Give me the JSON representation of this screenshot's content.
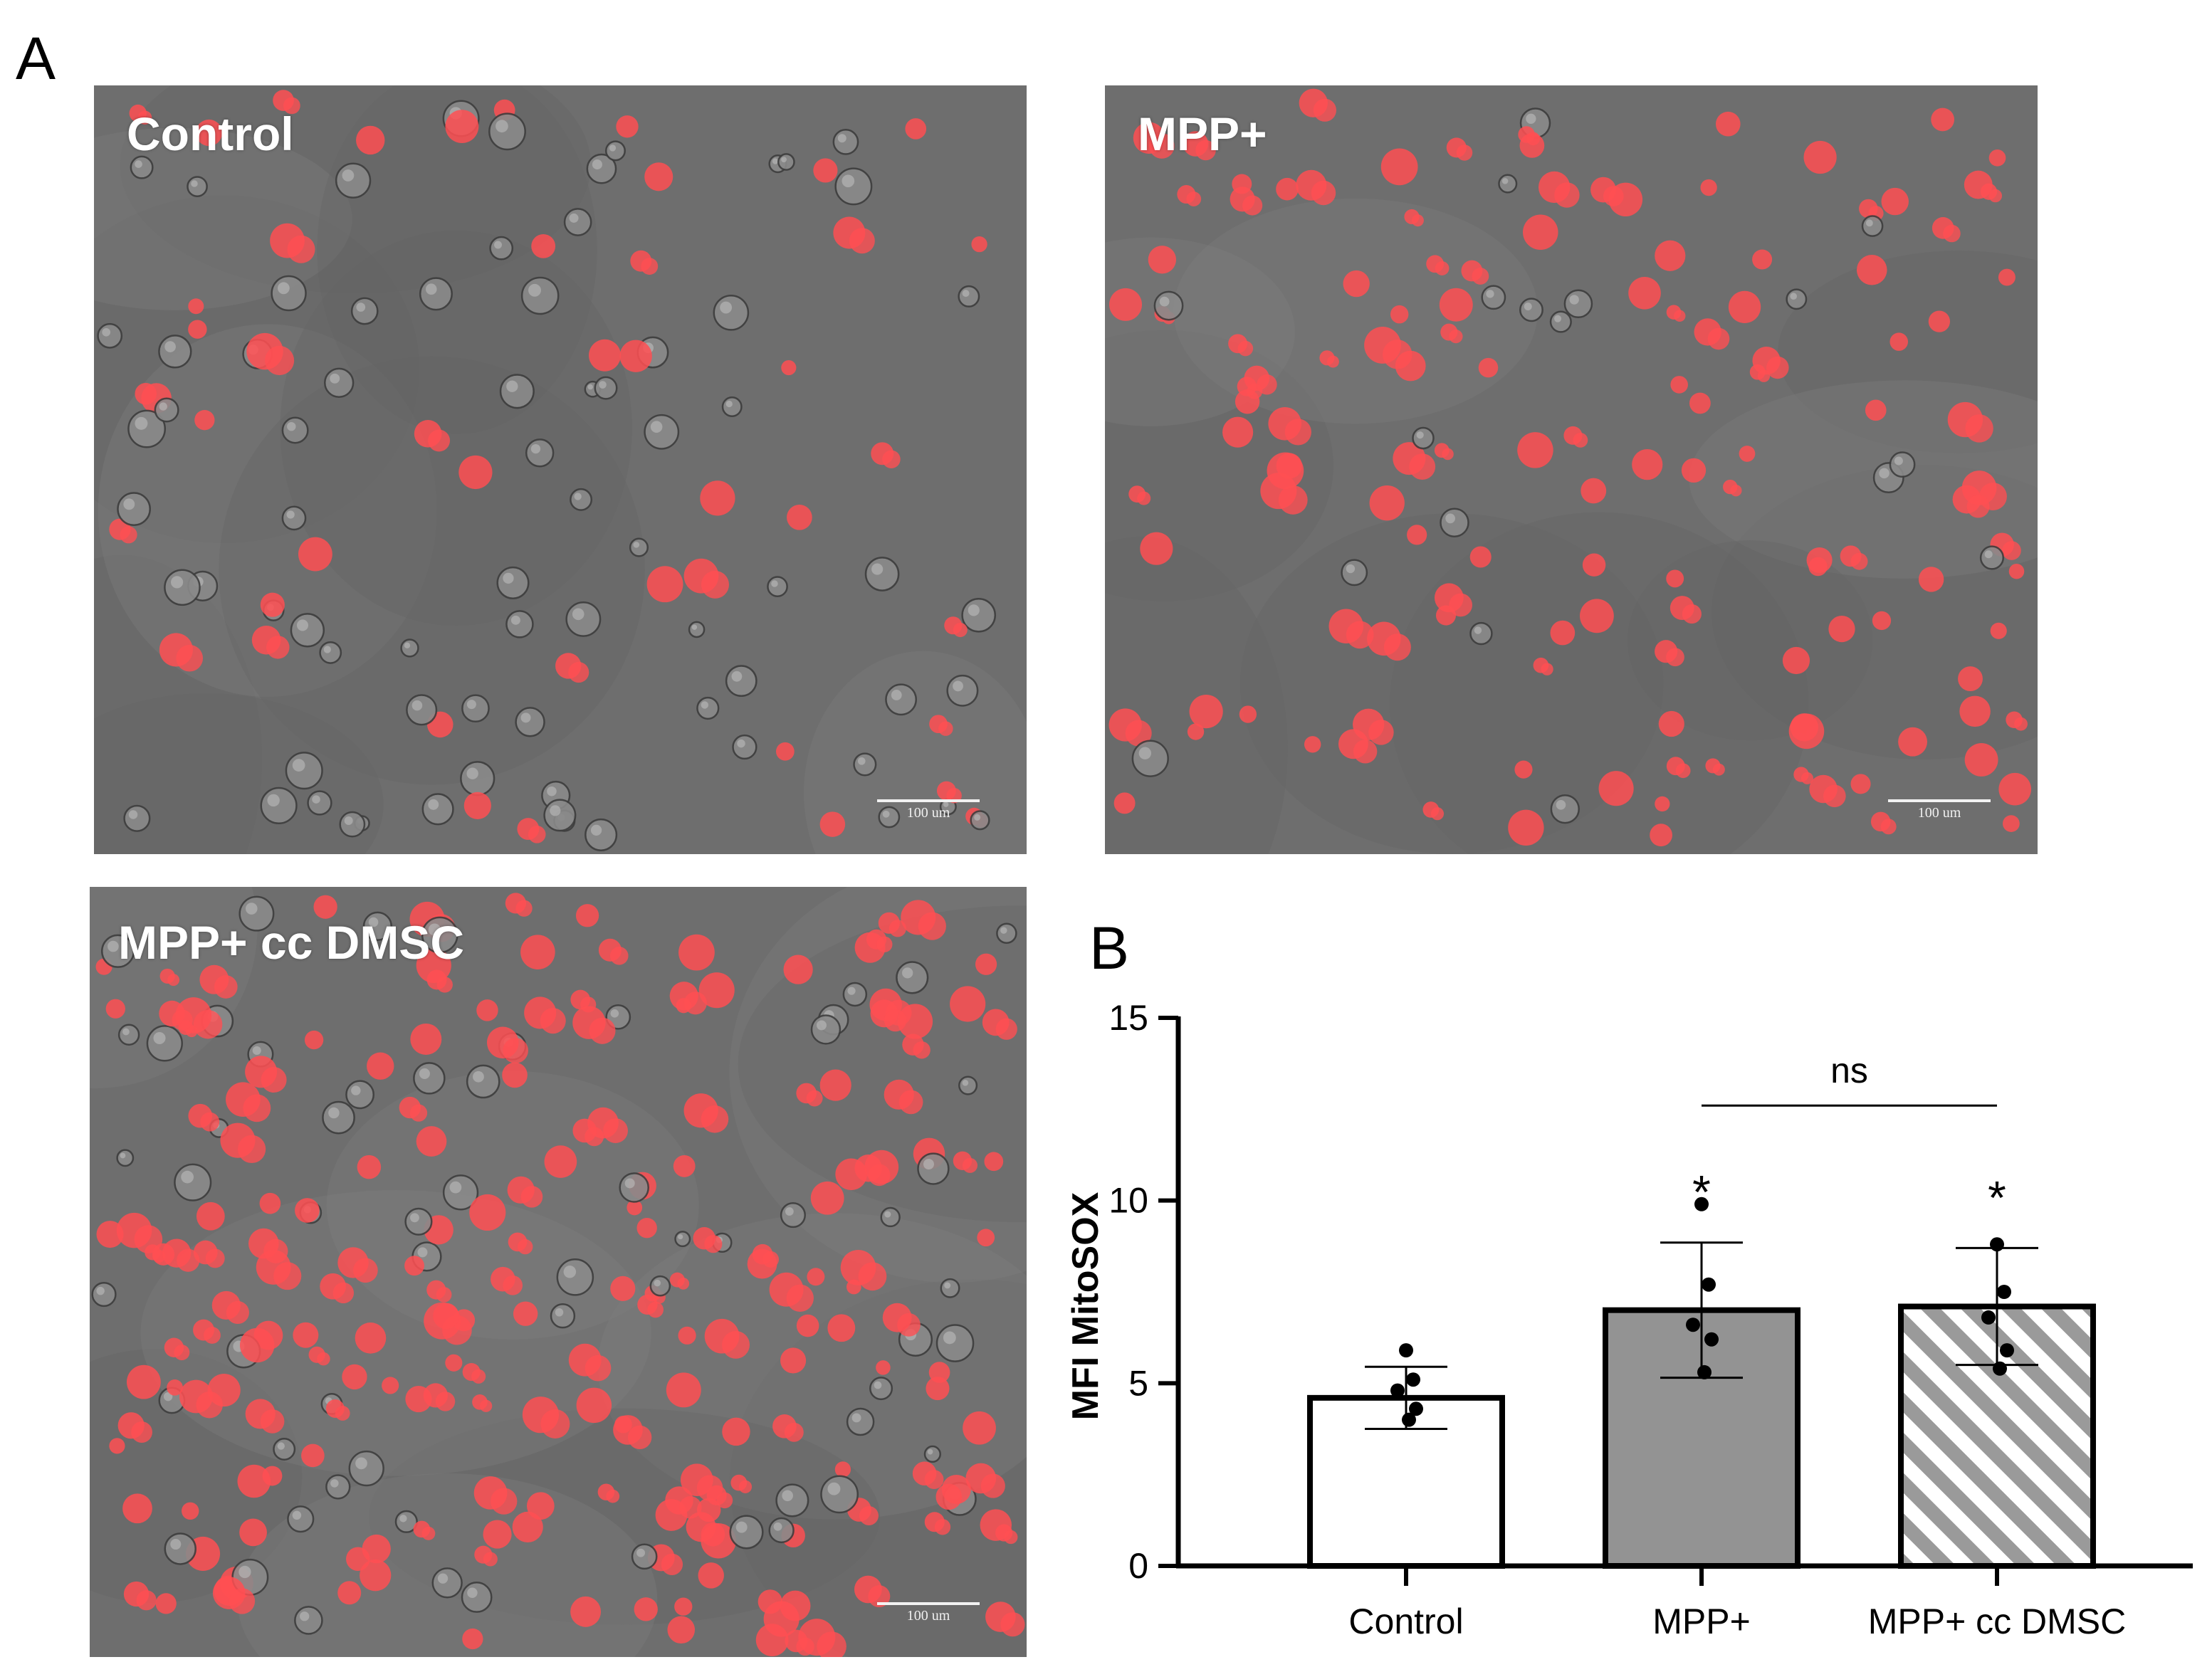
{
  "panel_labels": {
    "a": "A",
    "b": "B"
  },
  "micrographs": [
    {
      "label": "Control",
      "scale_bar": "100 um",
      "cell_density": "sparse",
      "red_fraction": 0.3
    },
    {
      "label": "MPP+",
      "scale_bar": "100 um",
      "cell_density": "medium",
      "red_fraction": 0.85
    },
    {
      "label": "MPP+ cc DMSC",
      "scale_bar": "100 um",
      "cell_density": "dense",
      "red_fraction": 0.75
    }
  ],
  "colors": {
    "micro_background": "#6e6e6e",
    "fluorescence_red": "#ff4f52",
    "bar_control": "#ffffff",
    "bar_mpp": "#939393",
    "bar_hatch": "#9a9a9a",
    "axis": "#000000"
  },
  "chart_data": {
    "type": "bar",
    "categories": [
      "Control",
      "MPP+",
      "MPP+ cc DMSC"
    ],
    "values": [
      4.6,
      7.0,
      7.1
    ],
    "error": [
      0.85,
      1.85,
      1.6
    ],
    "points": [
      [
        5.9,
        5.1,
        4.8,
        4.3,
        4.0
      ],
      [
        9.9,
        7.7,
        6.6,
        6.2,
        5.3
      ],
      [
        8.8,
        7.5,
        6.8,
        5.9,
        5.4
      ]
    ],
    "bar_fills": [
      "white",
      "gray",
      "hatched"
    ],
    "significance": [
      "",
      "*",
      "*"
    ],
    "comparison": {
      "from": 1,
      "to": 2,
      "label": "ns"
    },
    "ylabel": "MFI MitoSOX",
    "xlabel": "",
    "title": "",
    "ylim": [
      0,
      15
    ],
    "yticks": [
      0,
      5,
      10,
      15
    ]
  }
}
